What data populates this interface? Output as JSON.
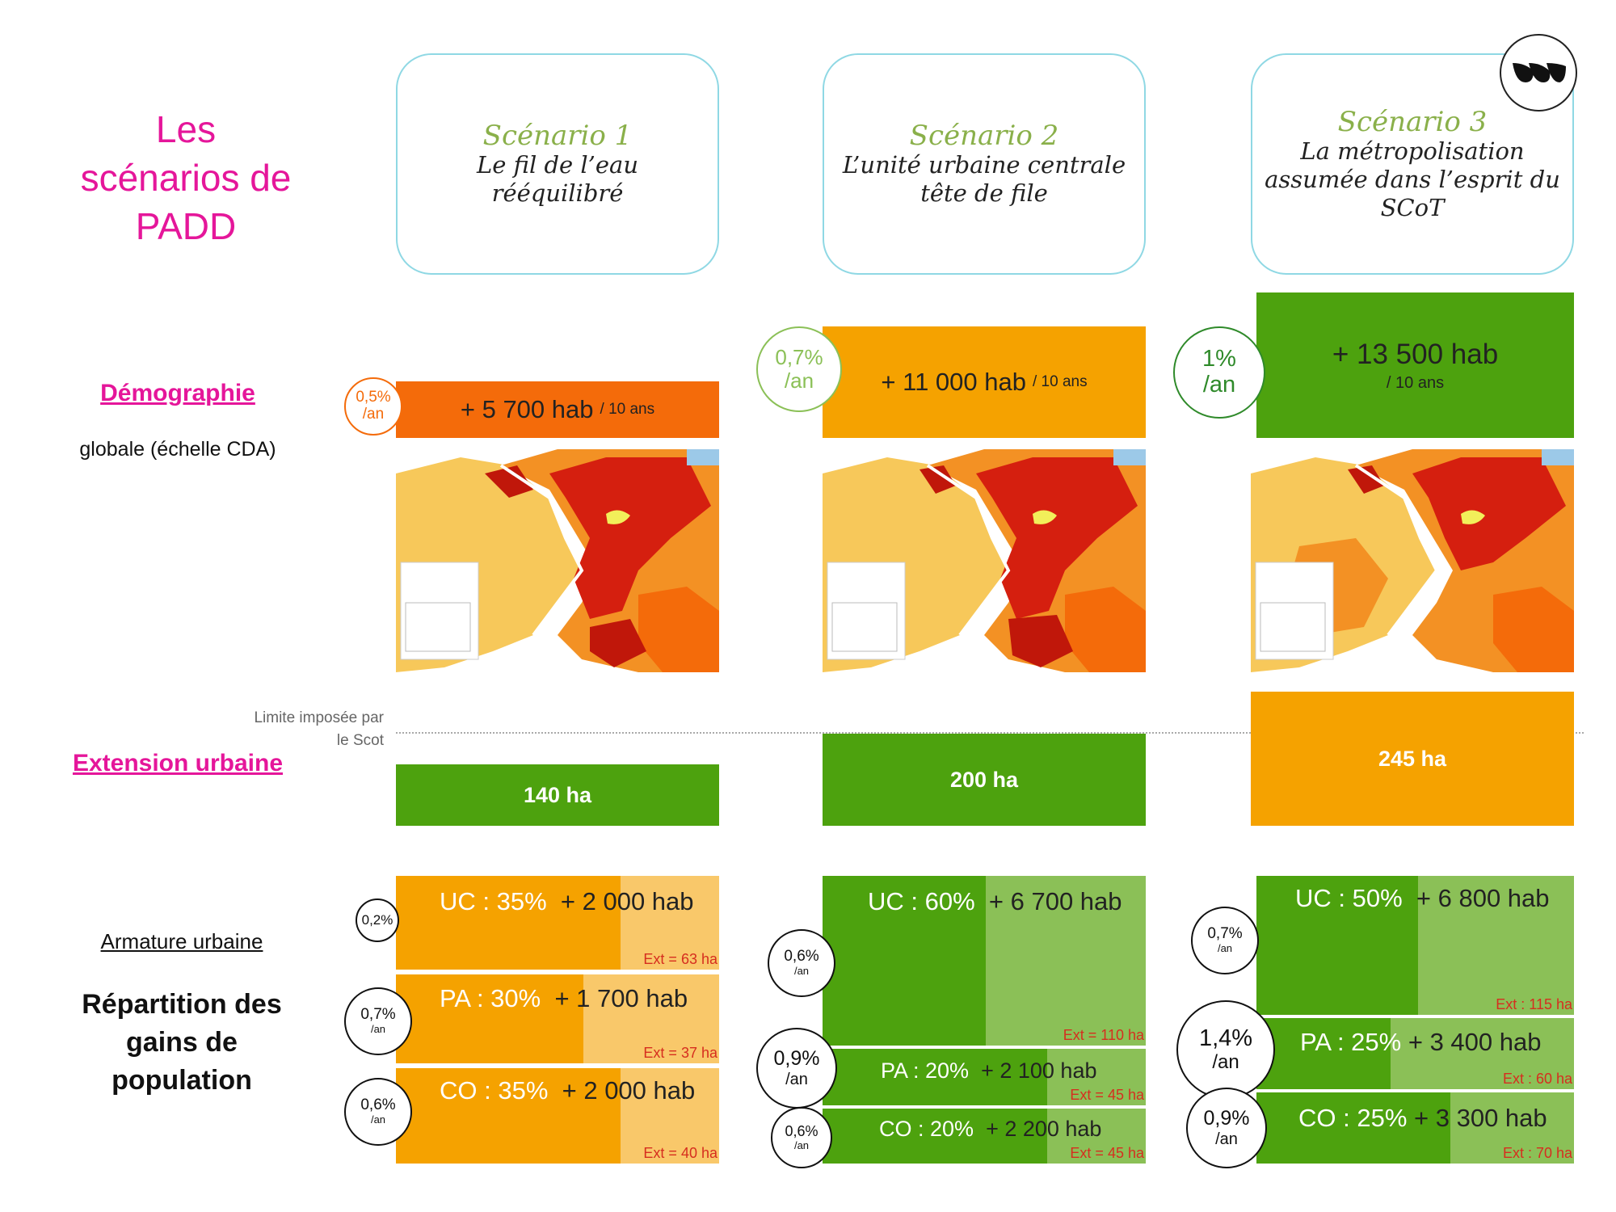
{
  "title": [
    "Les",
    "scénarios de",
    "PADD"
  ],
  "labels": {
    "demographie": "Démographie",
    "demographie_sub": "globale (échelle CDA)",
    "limite": [
      "Limite imposée par",
      "le Scot"
    ],
    "extension": "Extension urbaine",
    "armature": "Armature urbaine",
    "repartition": [
      "Répartition des",
      "gains de",
      "population"
    ]
  },
  "colors": {
    "title_pink": "#e5169a",
    "card_border": "#8fd8e4",
    "scenario_green": "#8ab04a",
    "orange_dark": "#f46b0a",
    "orange": "#f5a200",
    "orange_light": "#f9c86a",
    "green": "#4da20e",
    "green_light": "#8bc057",
    "ext_red": "#d62e1f"
  },
  "logo_icon": "company-logo-icon",
  "scenarios": [
    {
      "heading": "Scénario 1",
      "subtitle": [
        "Le fil de l’eau rééquilibré"
      ],
      "demo_value": "+ 5 700 hab",
      "demo_unit": "/ 10 ans",
      "rate": [
        "0,5%",
        "/an"
      ],
      "extension": "140 ha",
      "repartition": [
        {
          "pct": "UC : 35%",
          "hab": "+ 2 000 hab",
          "ext": "Ext = 63 ha",
          "rate": [
            "0,2%"
          ]
        },
        {
          "pct": "PA : 30%",
          "hab": "+ 1 700 hab",
          "ext": "Ext = 37 ha",
          "rate": [
            "0,7%",
            "/an"
          ]
        },
        {
          "pct": "CO : 35%",
          "hab": "+ 2 000 hab",
          "ext": "Ext = 40 ha",
          "rate": [
            "0,6%",
            "/an"
          ]
        }
      ]
    },
    {
      "heading": "Scénario 2",
      "subtitle": [
        "L’unité urbaine centrale",
        "tête de file"
      ],
      "demo_value": "+ 11 000 hab",
      "demo_unit": "/ 10 ans",
      "rate": [
        "0,7%",
        "/an"
      ],
      "extension": "200 ha",
      "repartition": [
        {
          "pct": "UC : 60%",
          "hab": "+ 6 700 hab",
          "ext": "Ext = 110 ha",
          "rate": [
            "0,6%",
            "/an"
          ]
        },
        {
          "pct": "PA : 20%",
          "hab": "+ 2 100 hab",
          "ext": "Ext = 45 ha",
          "rate": [
            "0,9%",
            "/an"
          ]
        },
        {
          "pct": "CO : 20%",
          "hab": "+ 2 200 hab",
          "ext": "Ext = 45 ha",
          "rate": [
            "0,6%",
            "/an"
          ]
        }
      ]
    },
    {
      "heading": "Scénario 3",
      "subtitle": [
        "La métropolisation",
        "assumée dans l’esprit du",
        "SCoT"
      ],
      "demo_value": "+ 13 500 hab",
      "demo_unit": "/ 10 ans",
      "rate": [
        "1%",
        "/an"
      ],
      "extension": "245 ha",
      "repartition": [
        {
          "pct": "UC : 50%",
          "hab": "+ 6 800 hab",
          "ext": "Ext : 115 ha",
          "rate": [
            "0,7%",
            "/an"
          ]
        },
        {
          "pct": "PA : 25%",
          "hab": "+ 3 400 hab",
          "ext": "Ext : 60 ha",
          "rate": [
            "1,4%",
            "/an"
          ]
        },
        {
          "pct": "CO : 25%",
          "hab": "+ 3 300 hab",
          "ext": "Ext : 70 ha",
          "rate": [
            "0,9%",
            "/an"
          ]
        }
      ]
    }
  ]
}
